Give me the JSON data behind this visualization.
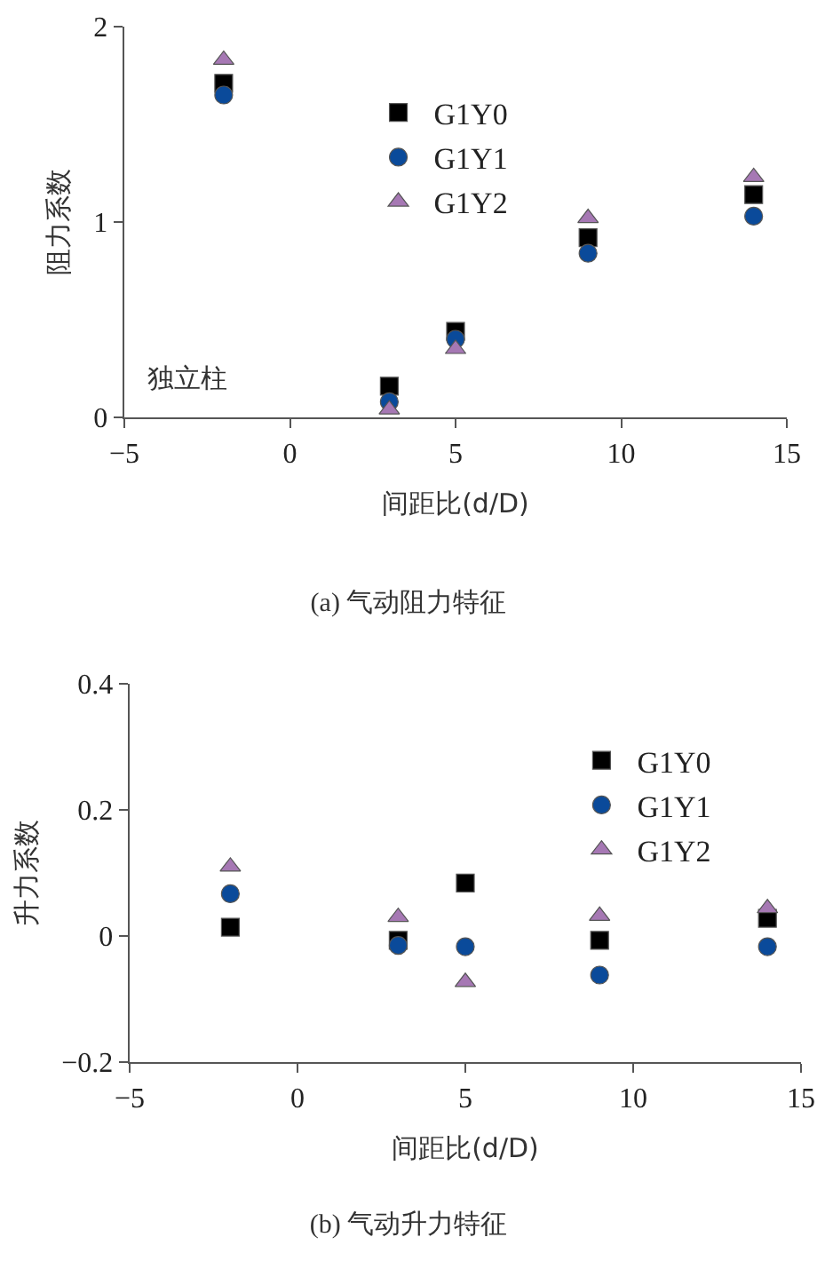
{
  "chart_data": [
    {
      "type": "scatter",
      "title": "(a) 气动阻力特征",
      "xlabel": "间距比(d/D)",
      "ylabel": "阻力系数",
      "annotations": [
        "独立柱"
      ],
      "x": [
        -2,
        3,
        5,
        9,
        14
      ],
      "xlim": [
        -5,
        15
      ],
      "xticks": [
        {
          "value": -5,
          "label": "−5"
        },
        0,
        5,
        10,
        15
      ],
      "ylim": [
        0,
        2
      ],
      "yticks": [
        0,
        1,
        2
      ],
      "grid": false,
      "legend": "top",
      "series": [
        {
          "name": "G1Y0",
          "color": "#000000",
          "marker": "square",
          "values": [
            1.71,
            0.16,
            0.44,
            0.92,
            1.14
          ]
        },
        {
          "name": "G1Y1",
          "color": "#0a4a9a",
          "marker": "circle",
          "values": [
            1.65,
            0.08,
            0.4,
            0.84,
            1.03
          ]
        },
        {
          "name": "G1Y2",
          "color": "#a678b4",
          "marker": "triangle",
          "values": [
            1.83,
            0.04,
            0.35,
            1.02,
            1.23
          ]
        }
      ]
    },
    {
      "type": "scatter",
      "title": "(b) 气动升力特征",
      "xlabel": "间距比(d/D)",
      "ylabel": "升力系数",
      "x": [
        -2,
        3,
        5,
        9,
        14
      ],
      "xlim": [
        -5,
        15
      ],
      "xticks": [
        {
          "value": -5,
          "label": "−5"
        },
        0,
        5,
        10,
        15
      ],
      "ylim": [
        -0.2,
        0.4
      ],
      "yticks": [
        {
          "value": -0.2,
          "label": "−0.2"
        },
        0,
        0.2,
        0.4
      ],
      "grid": false,
      "legend": "top right",
      "series": [
        {
          "name": "G1Y0",
          "color": "#000000",
          "marker": "square",
          "values": [
            0.014,
            -0.007,
            0.084,
            -0.007,
            0.028
          ]
        },
        {
          "name": "G1Y1",
          "color": "#0a4a9a",
          "marker": "circle",
          "values": [
            0.067,
            -0.015,
            -0.017,
            -0.062,
            -0.017
          ]
        },
        {
          "name": "G1Y2",
          "color": "#a678b4",
          "marker": "triangle",
          "values": [
            0.11,
            0.03,
            -0.073,
            0.032,
            0.044
          ]
        }
      ]
    }
  ]
}
